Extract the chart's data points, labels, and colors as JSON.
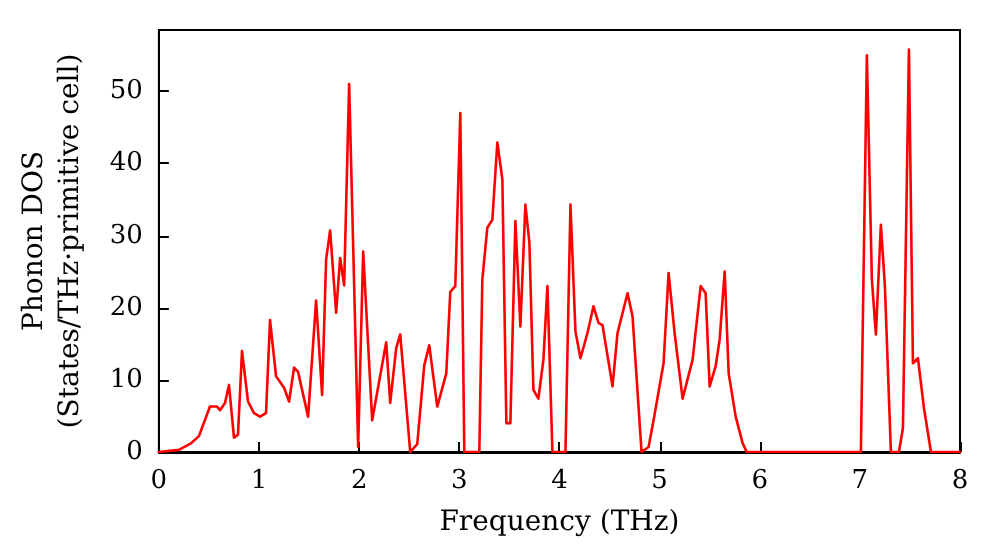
{
  "chart_data": {
    "type": "line",
    "xlabel": "Frequency (THz)",
    "ylabel": "Phonon DOS\n(States/THz·primitive cell)",
    "xlim": [
      0,
      8
    ],
    "xticks": [
      0,
      1,
      2,
      3,
      4,
      5,
      6,
      7,
      8
    ],
    "ylim": [
      0,
      58.5
    ],
    "yticks": [
      0,
      10,
      20,
      30,
      40,
      50
    ],
    "grid": false,
    "marker": "none",
    "line_style": "solid",
    "series": [
      {
        "color": "#ff0000",
        "x": [
          0,
          0.2,
          0.32,
          0.4,
          0.51,
          0.58,
          0.61,
          0.66,
          0.7,
          0.75,
          0.79,
          0.83,
          0.89,
          0.95,
          1.01,
          1.07,
          1.11,
          1.17,
          1.25,
          1.3,
          1.35,
          1.39,
          1.49,
          1.57,
          1.63,
          1.67,
          1.71,
          1.77,
          1.81,
          1.85,
          1.9,
          1.99,
          2.04,
          2.13,
          2.27,
          2.31,
          2.37,
          2.41,
          2.51,
          2.58,
          2.65,
          2.7,
          2.78,
          2.87,
          2.91,
          2.96,
          3.01,
          3.05,
          3.2,
          3.23,
          3.28,
          3.33,
          3.38,
          3.43,
          3.47,
          3.51,
          3.56,
          3.61,
          3.66,
          3.7,
          3.74,
          3.79,
          3.84,
          3.88,
          3.93,
          4.06,
          4.11,
          4.16,
          4.21,
          4.28,
          4.34,
          4.39,
          4.43,
          4.53,
          4.58,
          4.68,
          4.73,
          4.82,
          4.89,
          4.94,
          5.04,
          5.09,
          5.15,
          5.23,
          5.33,
          5.41,
          5.46,
          5.5,
          5.56,
          5.6,
          5.65,
          5.69,
          5.76,
          5.83,
          5.87,
          7.01,
          7.07,
          7.12,
          7.16,
          7.21,
          7.25,
          7.31,
          7.39,
          7.43,
          7.49,
          7.53,
          7.58,
          7.64,
          7.71,
          8
        ],
        "values": [
          0,
          0.3,
          1.2,
          2.2,
          6.3,
          6.3,
          5.8,
          6.8,
          9.3,
          2,
          2.4,
          14,
          7,
          5.4,
          4.9,
          5.4,
          18.3,
          10.5,
          8.9,
          7,
          11.7,
          11.1,
          4.9,
          21,
          7.9,
          26.7,
          30.7,
          19.3,
          26.9,
          23.1,
          51,
          0.7,
          27.8,
          4.4,
          15.2,
          6.8,
          14.4,
          16.3,
          0,
          1.1,
          12,
          14.8,
          6.3,
          10.9,
          22.2,
          23,
          47,
          0,
          0,
          23.9,
          31.1,
          32.2,
          42.9,
          37.8,
          4,
          4,
          32,
          17.4,
          34.3,
          29,
          8.6,
          7.4,
          12.8,
          23,
          0,
          0,
          34.3,
          16.7,
          13,
          16.5,
          20.2,
          17.9,
          17.6,
          9.1,
          16.5,
          22,
          18.8,
          0,
          0.7,
          4.4,
          12.3,
          24.8,
          16.5,
          7.4,
          12.8,
          23,
          22,
          9.1,
          11.9,
          15.6,
          25,
          10.9,
          4.9,
          1.2,
          0,
          0,
          55,
          23.9,
          16.3,
          31.5,
          23,
          0,
          0,
          3.3,
          55.8,
          12.3,
          13,
          6.1,
          0,
          0
        ]
      }
    ]
  }
}
